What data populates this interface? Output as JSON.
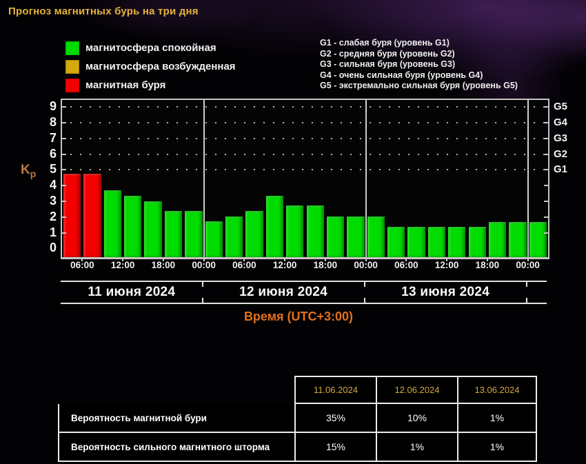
{
  "page": {
    "title": "Прогноз магнитных бурь на три дня"
  },
  "legend": {
    "states": [
      {
        "key": "quiet",
        "label": "магнитосфера спокойная",
        "color": "#00dc00"
      },
      {
        "key": "active",
        "label": "магнитосфера возбужденная",
        "color": "#d4a90f"
      },
      {
        "key": "storm",
        "label": "магнитная буря",
        "color": "#f40000"
      }
    ],
    "storm_levels": [
      "G1 - слабая буря (уровень G1)",
      "G2 - средняя буря (уровень G2)",
      "G3 - сильная буря (уровень G3)",
      "G4 - очень сильная буря (уровень G4)",
      "G5 - экстремально сильная буря (уровень G5)"
    ]
  },
  "chart_data": {
    "type": "bar",
    "title": "Прогноз магнитных бурь на три дня",
    "ylabel": "Kp",
    "xlabel": "Время (UTC+3:00)",
    "ylim": [
      0,
      9
    ],
    "yticks": [
      0,
      1,
      2,
      3,
      4,
      5,
      6,
      7,
      8,
      9
    ],
    "grid_values": [
      5,
      6,
      7,
      8,
      9
    ],
    "grid_style": "dotted",
    "right_axis_labels": [
      {
        "label": "G5",
        "value": 9
      },
      {
        "label": "G4",
        "value": 8
      },
      {
        "label": "G3",
        "value": 7
      },
      {
        "label": "G2",
        "value": 6
      },
      {
        "label": "G1",
        "value": 5
      }
    ],
    "bar_interval_hours": 3,
    "start_time": "03:00",
    "bars": [
      {
        "kp": 4.75,
        "state": "storm"
      },
      {
        "kp": 4.75,
        "state": "storm"
      },
      {
        "kp": 3.7,
        "state": "quiet"
      },
      {
        "kp": 3.35,
        "state": "quiet"
      },
      {
        "kp": 3.0,
        "state": "quiet"
      },
      {
        "kp": 2.4,
        "state": "quiet"
      },
      {
        "kp": 2.4,
        "state": "quiet"
      },
      {
        "kp": 1.75,
        "state": "quiet"
      },
      {
        "kp": 2.05,
        "state": "quiet"
      },
      {
        "kp": 2.4,
        "state": "quiet"
      },
      {
        "kp": 3.35,
        "state": "quiet"
      },
      {
        "kp": 2.75,
        "state": "quiet"
      },
      {
        "kp": 2.75,
        "state": "quiet"
      },
      {
        "kp": 2.05,
        "state": "quiet"
      },
      {
        "kp": 2.05,
        "state": "quiet"
      },
      {
        "kp": 2.05,
        "state": "quiet"
      },
      {
        "kp": 1.4,
        "state": "quiet"
      },
      {
        "kp": 1.4,
        "state": "quiet"
      },
      {
        "kp": 1.4,
        "state": "quiet"
      },
      {
        "kp": 1.4,
        "state": "quiet"
      },
      {
        "kp": 1.4,
        "state": "quiet"
      },
      {
        "kp": 1.7,
        "state": "quiet"
      },
      {
        "kp": 1.7,
        "state": "quiet"
      },
      {
        "kp": 1.7,
        "state": "quiet"
      }
    ],
    "x_ticks": [
      {
        "label": "06:00",
        "boundary": 1
      },
      {
        "label": "12:00",
        "boundary": 3
      },
      {
        "label": "18:00",
        "boundary": 5
      },
      {
        "label": "00:00",
        "boundary": 7
      },
      {
        "label": "06:00",
        "boundary": 9
      },
      {
        "label": "12:00",
        "boundary": 11
      },
      {
        "label": "18:00",
        "boundary": 13
      },
      {
        "label": "00:00",
        "boundary": 15
      },
      {
        "label": "06:00",
        "boundary": 17
      },
      {
        "label": "12:00",
        "boundary": 19
      },
      {
        "label": "18:00",
        "boundary": 21
      },
      {
        "label": "00:00",
        "boundary": 23
      }
    ],
    "day_separators": [
      7,
      15,
      23
    ],
    "day_bands": [
      {
        "label": "11 июня 2024",
        "from": 0,
        "to": 7
      },
      {
        "label": "12 июня 2024",
        "from": 7,
        "to": 15
      },
      {
        "label": "13 июня 2024",
        "from": 15,
        "to": 23
      }
    ],
    "colors": {
      "quiet": "#00dc00",
      "active": "#d4a90f",
      "storm": "#f40000"
    }
  },
  "table": {
    "columns": [
      "11.06.2024",
      "12.06.2024",
      "13.06.2024"
    ],
    "rows": [
      {
        "label": "Вероятность магнитной бури",
        "values": [
          "35%",
          "10%",
          "1%"
        ]
      },
      {
        "label": "Вероятность сильного магнитного шторма",
        "values": [
          "15%",
          "1%",
          "1%"
        ]
      }
    ]
  }
}
